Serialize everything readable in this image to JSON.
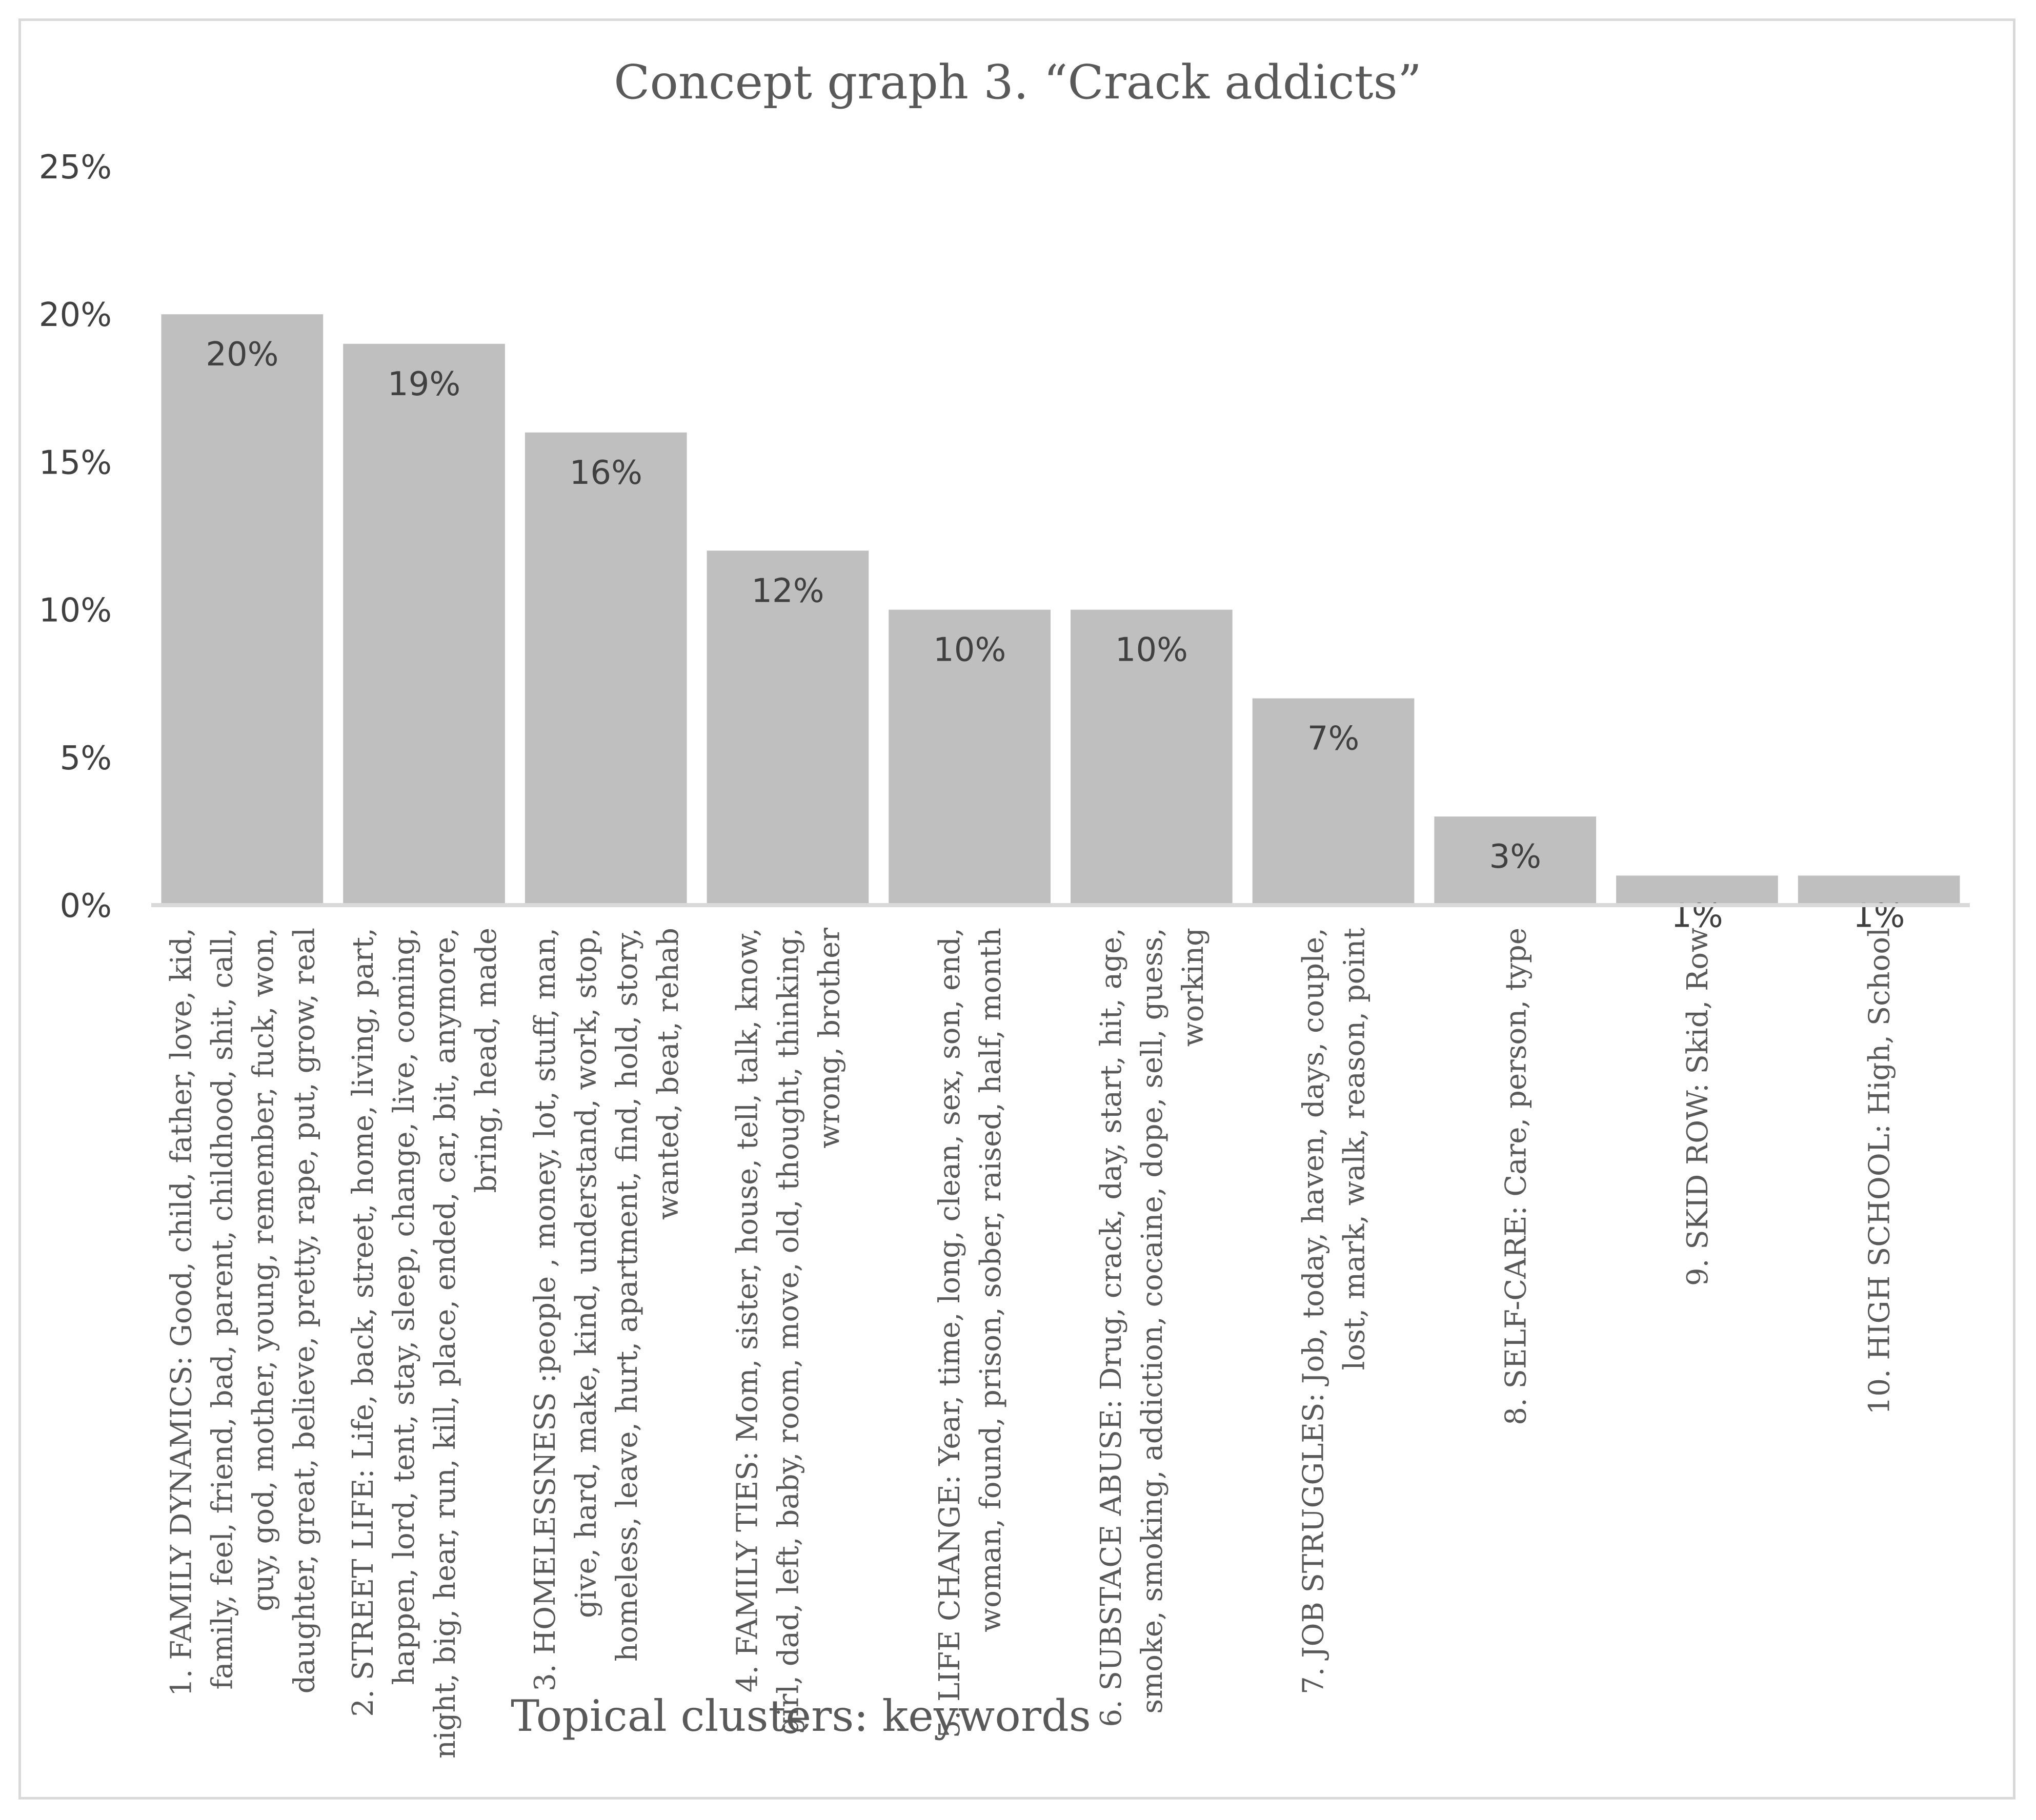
{
  "chart_data": {
    "type": "bar",
    "title": "Concept graph 3. “Crack addicts”",
    "xlabel": "Topical clusters: keywords",
    "ylabel": "",
    "ylim": [
      0,
      25
    ],
    "y_ticks": [
      "0%",
      "5%",
      "10%",
      "15%",
      "20%",
      "25%"
    ],
    "y_tick_values": [
      0,
      5,
      10,
      15,
      20,
      25
    ],
    "grid": false,
    "legend": "none",
    "bar_color": "#bfbfbf",
    "axis_color": "#d9d9d9",
    "text_color": "#404040",
    "categories": [
      [
        "1. FAMILY DYNAMICS: Good, child, father, love, kid,",
        "family, feel, friend, bad, parent, childhood, shit, call,",
        "guy, god, mother, young, remember, fuck, won,",
        "daughter, great, believe, pretty, rape, put, grow, real"
      ],
      [
        "2. STREET LIFE: Life, back, street, home, living, part,",
        "happen, lord, tent, stay, sleep, change, live, coming,",
        "night, big, hear, run, kill, place, ended, car, bit, anymore,",
        "bring, head, made"
      ],
      [
        "3. HOMELESSNESS :people , money, lot, stuff, man,",
        "give, hard, make, kind, understand, work, stop,",
        "homeless, leave, hurt, apartment, find, hold, story,",
        "wanted, beat, rehab"
      ],
      [
        "4. FAMILY TIES: Mom, sister, house, tell, talk, know,",
        "girl, dad, left, baby, room, move, old, thought, thinking,",
        "wrong, brother"
      ],
      [
        "5. LIFE CHANGE: Year, time, long, clean, sex, son, end,",
        "woman, found, prison, sober, raised, half, month"
      ],
      [
        "6. SUBSTACE ABUSE: Drug, crack, day, start, hit, age,",
        "smoke, smoking, addiction, cocaine, dope, sell, guess,",
        "working"
      ],
      [
        "7. JOB STRUGGLES: Job, today, haven, days, couple,",
        "lost, mark, walk, reason, point"
      ],
      [
        "8. SELF-CARE: Care, person, type"
      ],
      [
        "9. SKID ROW: Skid, Row"
      ],
      [
        "10. HIGH SCHOOL: High, School"
      ]
    ],
    "values": [
      20,
      19,
      16,
      12,
      10,
      10,
      7,
      3,
      1,
      1
    ],
    "data_labels": [
      "20%",
      "19%",
      "16%",
      "12%",
      "10%",
      "10%",
      "7%",
      "3%",
      "1%",
      "1%"
    ]
  }
}
